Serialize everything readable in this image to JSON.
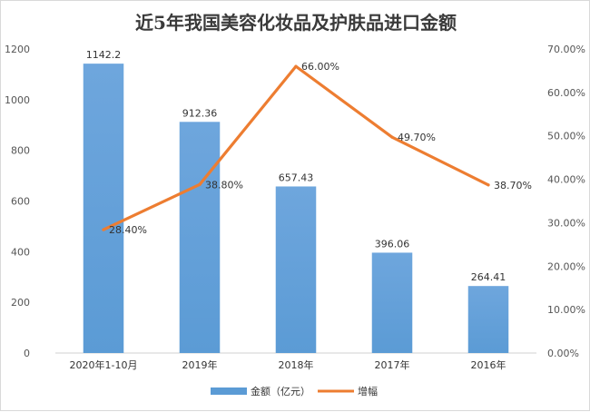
{
  "chart_data": {
    "type": "bar",
    "title": "近5年我国美容化妆品及护肤品进口金额",
    "categories": [
      "2020年1-10月",
      "2019年",
      "2018年",
      "2017年",
      "2016年"
    ],
    "series": [
      {
        "name": "金额（亿元）",
        "type": "bar",
        "axis": "left",
        "values": [
          1142.2,
          912.36,
          657.43,
          396.06,
          264.41
        ],
        "labels": [
          "1142.2",
          "912.36",
          "657.43",
          "396.06",
          "264.41"
        ],
        "color": "#5b9bd5"
      },
      {
        "name": "增幅",
        "type": "line",
        "axis": "right",
        "values": [
          28.4,
          38.8,
          66.0,
          49.7,
          38.7
        ],
        "labels": [
          "28.40%",
          "38.80%",
          "66.00%",
          "49.70%",
          "38.70%"
        ],
        "color": "#ed7d31"
      }
    ],
    "y_left": {
      "min": 0,
      "max": 1200,
      "ticks": [
        "0",
        "200",
        "400",
        "600",
        "800",
        "1000",
        "1200"
      ]
    },
    "y_right": {
      "min": 0,
      "max": 70,
      "ticks": [
        "0.00%",
        "10.00%",
        "20.00%",
        "30.00%",
        "40.00%",
        "50.00%",
        "60.00%",
        "70.00%"
      ]
    },
    "grid": false,
    "legend": "bottom"
  }
}
